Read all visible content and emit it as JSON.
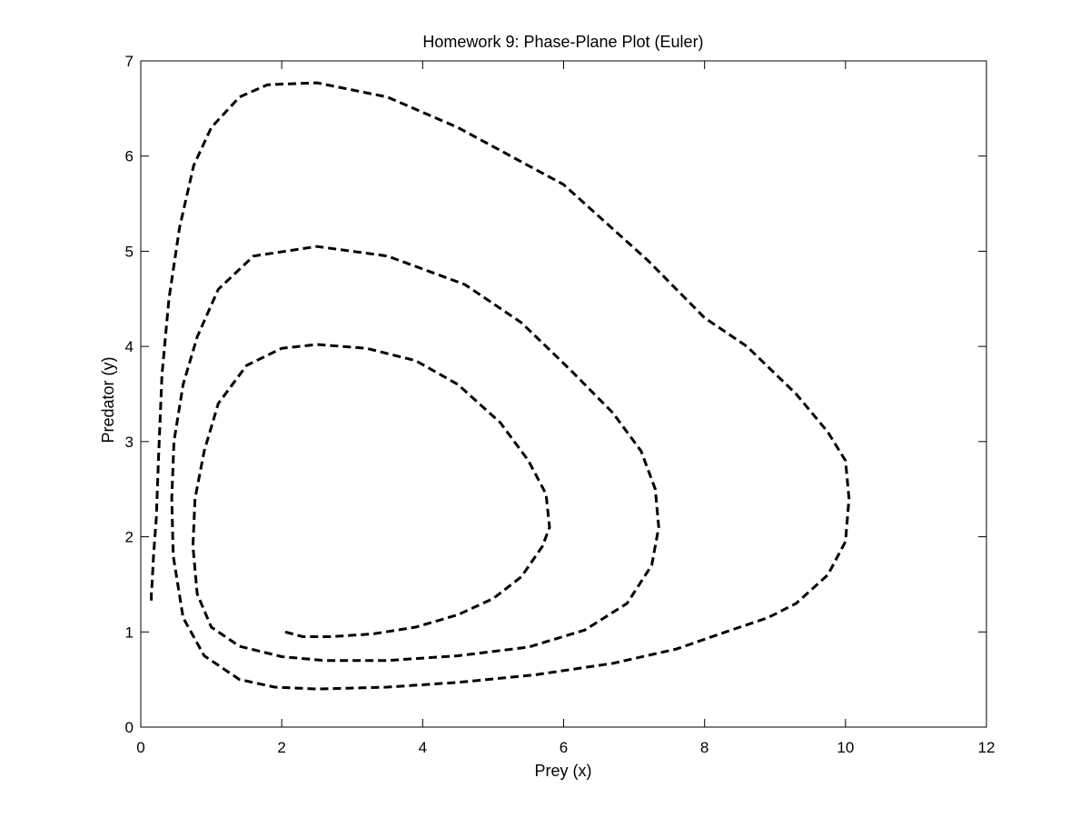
{
  "chart_data": {
    "type": "line",
    "title": "Homework 9: Phase-Plane Plot (Euler)",
    "xlabel": "Prey (x)",
    "ylabel": "Predator (y)",
    "xlim": [
      0,
      12
    ],
    "ylim": [
      0,
      7
    ],
    "xticks": [
      0,
      2,
      4,
      6,
      8,
      10,
      12
    ],
    "yticks": [
      0,
      1,
      2,
      3,
      4,
      5,
      6,
      7
    ],
    "xtick_labels": [
      "0",
      "2",
      "4",
      "6",
      "8",
      "10",
      "12"
    ],
    "ytick_labels": [
      "0",
      "1",
      "2",
      "3",
      "4",
      "5",
      "6",
      "7"
    ],
    "grid": false,
    "line_style": "dashed",
    "line_color": "#000000",
    "series": [
      {
        "x": [
          2.05,
          2.3,
          2.7,
          3.3,
          3.9,
          4.5,
          5.0,
          5.4,
          5.7,
          5.8,
          5.75,
          5.5,
          5.1,
          4.5,
          3.9,
          3.2,
          2.5,
          2.0,
          1.5,
          1.1,
          0.9,
          0.77,
          0.74,
          0.8,
          1.0,
          1.4,
          2.0,
          2.6,
          3.5,
          4.5,
          5.5,
          6.3,
          6.9,
          7.25,
          7.35,
          7.3,
          7.1,
          6.7,
          6.1,
          5.4,
          4.6,
          3.5,
          2.5,
          1.6,
          1.1,
          0.8,
          0.6,
          0.47,
          0.44,
          0.46,
          0.6,
          0.9,
          1.4,
          1.9,
          2.5,
          3.5,
          4.5,
          5.6,
          6.7,
          7.6,
          8.3,
          8.9,
          9.3,
          9.75,
          10.0,
          10.05,
          10.0,
          9.75,
          9.3,
          8.6,
          8.0,
          7.2,
          6.0,
          4.5,
          3.5,
          2.5,
          1.8,
          1.4,
          1.0,
          0.75,
          0.55,
          0.4,
          0.3,
          0.25,
          0.22,
          0.18,
          0.16,
          0.15,
          0.15
        ],
        "y": [
          1.0,
          0.95,
          0.95,
          0.98,
          1.05,
          1.18,
          1.35,
          1.58,
          1.9,
          2.1,
          2.45,
          2.8,
          3.2,
          3.6,
          3.85,
          3.98,
          4.02,
          3.98,
          3.8,
          3.4,
          2.9,
          2.4,
          1.9,
          1.4,
          1.05,
          0.85,
          0.74,
          0.7,
          0.7,
          0.75,
          0.84,
          1.02,
          1.3,
          1.7,
          2.1,
          2.5,
          2.9,
          3.3,
          3.75,
          4.25,
          4.65,
          4.95,
          5.05,
          4.95,
          4.6,
          4.1,
          3.6,
          3.0,
          2.4,
          1.8,
          1.15,
          0.75,
          0.5,
          0.42,
          0.4,
          0.42,
          0.47,
          0.55,
          0.67,
          0.82,
          1.0,
          1.15,
          1.3,
          1.6,
          1.95,
          2.4,
          2.8,
          3.1,
          3.5,
          4.0,
          4.3,
          4.9,
          5.7,
          6.3,
          6.62,
          6.77,
          6.75,
          6.62,
          6.3,
          5.9,
          5.25,
          4.5,
          3.7,
          2.8,
          2.2,
          1.8,
          1.5,
          1.4,
          1.3
        ]
      }
    ]
  }
}
